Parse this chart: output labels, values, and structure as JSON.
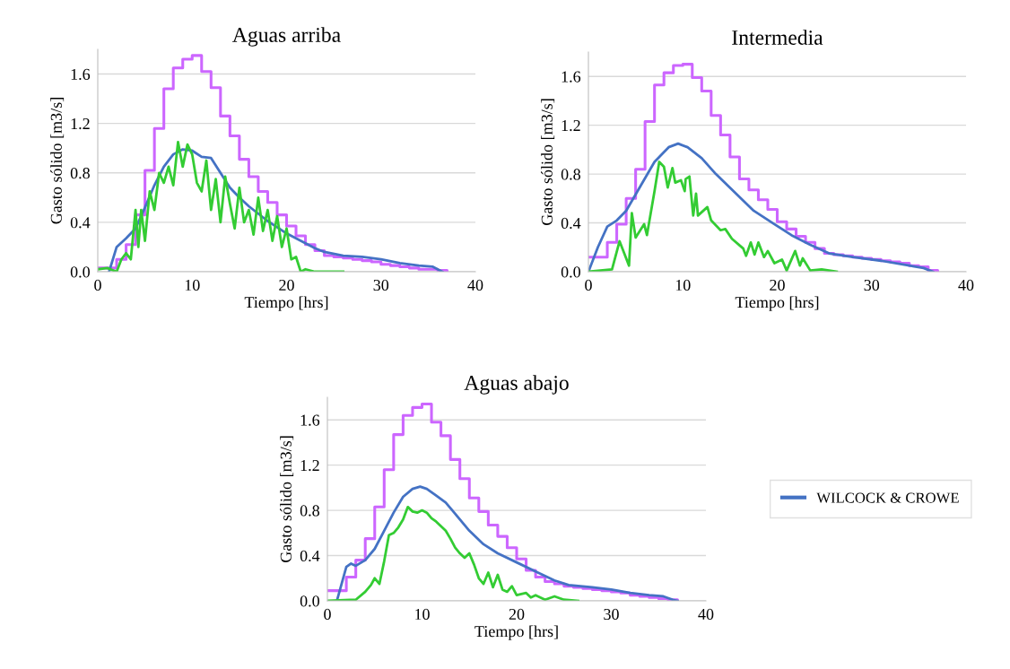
{
  "chart_data": [
    {
      "type": "line",
      "title": "Aguas arriba",
      "xlabel": "Tiempo [hrs]",
      "ylabel": "Gasto sólido [m3/s]",
      "xlim": [
        0,
        40
      ],
      "xticks": [
        0,
        10,
        20,
        30,
        40
      ],
      "ylim": [
        0,
        1.8
      ],
      "yticks": [
        {
          "value": 0,
          "label": "0.0"
        },
        {
          "value": 0.4,
          "label": "0.4"
        },
        {
          "value": 0.8,
          "label": "0.8"
        },
        {
          "value": 1.2,
          "label": "1.2"
        },
        {
          "value": 1.6,
          "label": "1.6"
        }
      ],
      "grid": "y",
      "series": [
        {
          "type": "step",
          "color": "#cc66ff",
          "x": [
            0,
            1,
            2,
            3,
            4,
            5,
            6,
            7,
            8,
            9,
            10,
            11,
            12,
            13,
            14,
            15,
            16,
            17,
            18,
            19,
            20,
            21,
            22,
            23,
            24,
            25,
            26,
            27,
            28,
            29,
            30,
            31,
            32,
            33,
            34,
            35,
            36,
            37
          ],
          "values": [
            0.03,
            0.03,
            0.1,
            0.22,
            0.46,
            0.82,
            1.16,
            1.48,
            1.65,
            1.72,
            1.75,
            1.62,
            1.49,
            1.26,
            1.1,
            0.91,
            0.77,
            0.65,
            0.56,
            0.46,
            0.37,
            0.29,
            0.22,
            0.17,
            0.13,
            0.12,
            0.11,
            0.1,
            0.09,
            0.08,
            0.06,
            0.05,
            0.04,
            0.03,
            0.02,
            0.02,
            0.01,
            0
          ]
        },
        {
          "color": "#4472c4",
          "x": [
            1.2,
            2,
            3,
            4,
            5,
            6,
            7,
            8,
            9,
            10,
            11,
            12,
            13,
            14,
            15,
            16,
            17,
            18,
            19,
            20,
            21,
            22,
            23,
            24,
            26,
            28,
            30,
            32,
            34,
            35.5,
            36.5
          ],
          "values": [
            0,
            0.2,
            0.27,
            0.35,
            0.52,
            0.7,
            0.85,
            0.95,
            0.99,
            0.98,
            0.93,
            0.92,
            0.8,
            0.68,
            0.6,
            0.53,
            0.47,
            0.41,
            0.36,
            0.31,
            0.27,
            0.23,
            0.19,
            0.16,
            0.13,
            0.12,
            0.1,
            0.07,
            0.05,
            0.04,
            0
          ]
        },
        {
          "color": "#33cc33",
          "x": [
            0,
            1,
            2,
            2.5,
            3,
            3.5,
            4,
            4.3,
            4.6,
            5,
            5.5,
            6,
            6.5,
            7,
            7.5,
            8,
            8.5,
            9,
            9.5,
            10,
            10.5,
            11,
            11.5,
            12,
            12.5,
            13,
            13.5,
            14,
            14.5,
            15,
            15.5,
            16,
            16.5,
            17,
            17.5,
            18,
            18.5,
            19,
            19.5,
            20,
            20.5,
            21,
            21.5,
            22,
            23,
            26
          ],
          "values": [
            0.02,
            0.03,
            0,
            0.1,
            0.15,
            0.1,
            0.5,
            0.2,
            0.5,
            0.25,
            0.65,
            0.5,
            0.8,
            0.72,
            0.85,
            0.7,
            1.05,
            0.85,
            1.03,
            0.95,
            0.72,
            0.65,
            0.9,
            0.5,
            0.75,
            0.4,
            0.77,
            0.55,
            0.35,
            0.68,
            0.4,
            0.5,
            0.3,
            0.6,
            0.33,
            0.5,
            0.25,
            0.45,
            0.2,
            0.35,
            0.1,
            0.12,
            0,
            0.02,
            0,
            0
          ]
        }
      ]
    },
    {
      "type": "line",
      "title": "Intermedia",
      "xlabel": "Tiempo [hrs]",
      "ylabel": "Gasto sólido [m3/s]",
      "xlim": [
        0,
        40
      ],
      "xticks": [
        0,
        10,
        20,
        30,
        40
      ],
      "ylim": [
        0,
        1.8
      ],
      "yticks": [
        {
          "value": 0,
          "label": "0.0"
        },
        {
          "value": 0.4,
          "label": "0.4"
        },
        {
          "value": 0.8,
          "label": "0.8"
        },
        {
          "value": 1.2,
          "label": "1.2"
        },
        {
          "value": 1.6,
          "label": "1.6"
        }
      ],
      "grid": "y",
      "series": [
        {
          "type": "step",
          "color": "#cc66ff",
          "x": [
            0,
            1,
            2,
            3,
            4,
            5,
            6,
            7,
            8,
            9,
            10,
            11,
            12,
            13,
            14,
            15,
            16,
            17,
            18,
            19,
            20,
            21,
            22,
            23,
            24,
            25,
            26,
            27,
            28,
            29,
            30,
            31,
            32,
            33,
            34,
            35,
            36,
            37
          ],
          "values": [
            0.12,
            0.12,
            0.24,
            0.39,
            0.6,
            0.84,
            1.23,
            1.53,
            1.63,
            1.69,
            1.7,
            1.59,
            1.48,
            1.28,
            1.12,
            0.94,
            0.76,
            0.67,
            0.59,
            0.51,
            0.41,
            0.35,
            0.29,
            0.24,
            0.19,
            0.15,
            0.14,
            0.13,
            0.12,
            0.11,
            0.1,
            0.09,
            0.08,
            0.07,
            0.05,
            0.04,
            0.01,
            0
          ]
        },
        {
          "color": "#4472c4",
          "x": [
            0,
            1,
            2,
            3,
            4,
            5.5,
            7,
            8.5,
            9.5,
            10.5,
            12,
            13.5,
            15.5,
            17.5,
            19.5,
            21.5,
            23.5,
            25.5,
            28,
            31,
            34,
            35.5,
            36.5
          ],
          "values": [
            0,
            0.2,
            0.37,
            0.42,
            0.5,
            0.7,
            0.9,
            1.02,
            1.05,
            1.02,
            0.93,
            0.8,
            0.65,
            0.5,
            0.4,
            0.3,
            0.22,
            0.15,
            0.12,
            0.09,
            0.05,
            0.03,
            0
          ]
        },
        {
          "color": "#33cc33",
          "x": [
            0,
            2.5,
            3.3,
            4.3,
            4.6,
            5,
            5.9,
            6.2,
            7,
            7.5,
            8,
            8.4,
            8.9,
            9.2,
            9.8,
            10.2,
            10.3,
            10.7,
            11.1,
            11.4,
            11.6,
            12.6,
            13,
            14,
            14.5,
            15.2,
            16.4,
            16.7,
            17.2,
            17.6,
            18,
            18.6,
            19,
            19.7,
            20.5,
            21,
            21.9,
            22.4,
            22.7,
            23.5,
            24.7,
            26.3
          ],
          "values": [
            0,
            0.02,
            0.25,
            0.05,
            0.48,
            0.28,
            0.39,
            0.3,
            0.66,
            0.9,
            0.86,
            0.69,
            0.85,
            0.73,
            0.75,
            0.66,
            0.76,
            0.78,
            0.46,
            0.64,
            0.46,
            0.53,
            0.42,
            0.34,
            0.35,
            0.27,
            0.19,
            0.13,
            0.24,
            0.14,
            0.24,
            0.12,
            0.17,
            0.07,
            0.1,
            0.01,
            0.17,
            0.05,
            0.11,
            0.01,
            0.02,
            0
          ]
        }
      ]
    },
    {
      "type": "line",
      "title": "Aguas abajo",
      "xlabel": "Tiempo [hrs]",
      "ylabel": "Gasto sólido [m3/s]",
      "xlim": [
        0,
        40
      ],
      "xticks": [
        0,
        10,
        20,
        30,
        40
      ],
      "ylim": [
        0,
        1.8
      ],
      "yticks": [
        {
          "value": 0,
          "label": "0.0"
        },
        {
          "value": 0.4,
          "label": "0.4"
        },
        {
          "value": 0.8,
          "label": "0.8"
        },
        {
          "value": 1.2,
          "label": "1.2"
        },
        {
          "value": 1.6,
          "label": "1.6"
        }
      ],
      "grid": "y",
      "legend": "right",
      "series": [
        {
          "type": "step",
          "color": "#cc66ff",
          "x": [
            0,
            1,
            2,
            3,
            4,
            5,
            6,
            7,
            8,
            9,
            10,
            11,
            12,
            13,
            14,
            15,
            16,
            17,
            18,
            19,
            20,
            21,
            22,
            23,
            24,
            25,
            26,
            27,
            28,
            29,
            30,
            31,
            32,
            33,
            34,
            35,
            36,
            37
          ],
          "values": [
            0.09,
            0.09,
            0.21,
            0.36,
            0.55,
            0.83,
            1.16,
            1.47,
            1.64,
            1.71,
            1.74,
            1.58,
            1.46,
            1.25,
            1.08,
            0.91,
            0.79,
            0.67,
            0.57,
            0.47,
            0.37,
            0.27,
            0.21,
            0.17,
            0.15,
            0.13,
            0.12,
            0.11,
            0.1,
            0.09,
            0.08,
            0.07,
            0.05,
            0.04,
            0.03,
            0.02,
            0.01,
            0
          ]
        },
        {
          "name": "WILCOCK & CROWE",
          "color": "#4472c4",
          "x": [
            1,
            1.5,
            2,
            2.5,
            3,
            4,
            5,
            6,
            7,
            8,
            9,
            9.8,
            10.5,
            11.5,
            12.5,
            13.5,
            15,
            16.5,
            18,
            20,
            22,
            24,
            25.5,
            28,
            30,
            32,
            34,
            35.5,
            36.5,
            37
          ],
          "values": [
            0,
            0.15,
            0.3,
            0.33,
            0.31,
            0.36,
            0.46,
            0.62,
            0.78,
            0.92,
            0.99,
            1.01,
            0.99,
            0.93,
            0.87,
            0.77,
            0.62,
            0.5,
            0.42,
            0.34,
            0.26,
            0.18,
            0.14,
            0.12,
            0.1,
            0.07,
            0.05,
            0.04,
            0.01,
            0
          ]
        },
        {
          "color": "#33cc33",
          "x": [
            0,
            3,
            4,
            4.6,
            5,
            5.5,
            6,
            6.5,
            7,
            7.5,
            8,
            8.5,
            9,
            9.5,
            10,
            10.5,
            11,
            11.5,
            12,
            12.5,
            13,
            13.5,
            14,
            14.5,
            15,
            15.5,
            16,
            16.5,
            17,
            17.5,
            18,
            18.5,
            19,
            19.5,
            20,
            21,
            21.5,
            22,
            23,
            24,
            25,
            26.5
          ],
          "values": [
            0,
            0.01,
            0.08,
            0.14,
            0.2,
            0.15,
            0.35,
            0.58,
            0.6,
            0.65,
            0.72,
            0.83,
            0.79,
            0.78,
            0.8,
            0.78,
            0.73,
            0.7,
            0.66,
            0.62,
            0.55,
            0.47,
            0.42,
            0.38,
            0.42,
            0.32,
            0.2,
            0.15,
            0.25,
            0.12,
            0.23,
            0.1,
            0.08,
            0.13,
            0.05,
            0.07,
            0.03,
            0.05,
            0.01,
            0.04,
            0.01,
            0
          ]
        }
      ]
    }
  ]
}
